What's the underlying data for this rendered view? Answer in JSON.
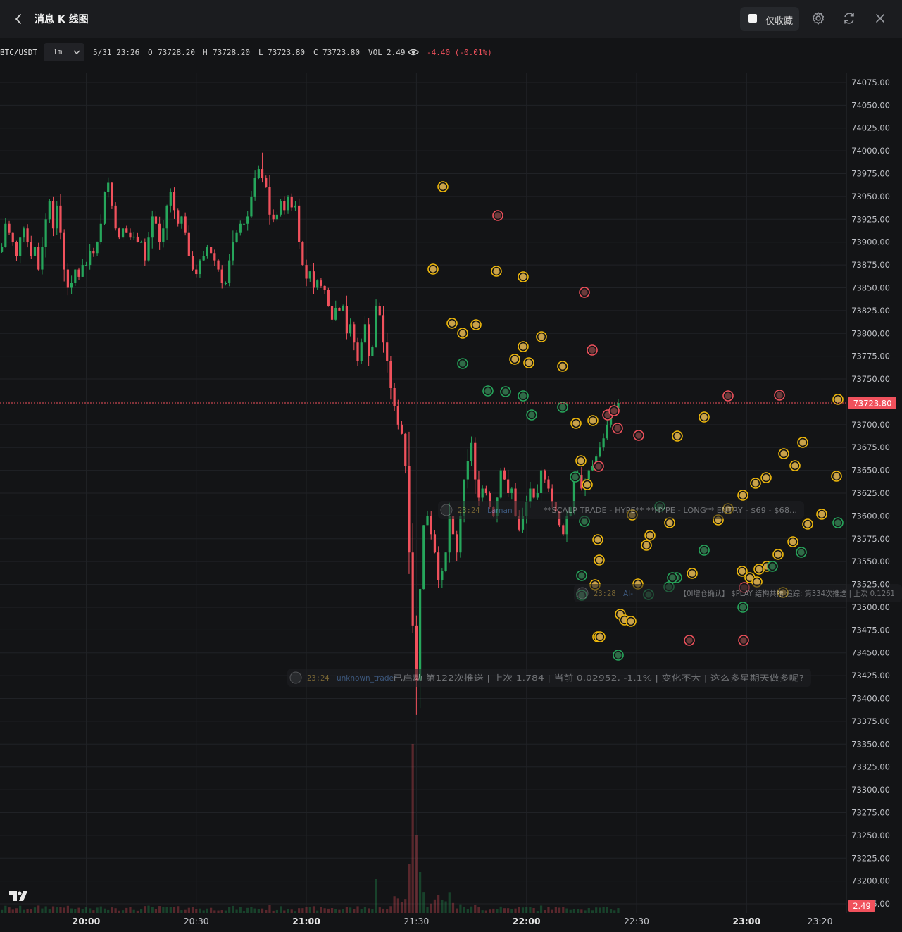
{
  "header": {
    "title": "消息 K 线图",
    "favorites_label": "仅收藏"
  },
  "toolbar": {
    "symbol": "BTC/USDT",
    "interval": "1m",
    "datetime": "5/31 23:26",
    "open_label": "O",
    "open": "73728.20",
    "high_label": "H",
    "high": "73728.20",
    "low_label": "L",
    "low": "73723.80",
    "close_label": "C",
    "close": "73723.80",
    "volume_label": "VOL",
    "volume": "2.49",
    "change": "-4.40 (-0.01%)"
  },
  "colors": {
    "up": "#26a65b",
    "down": "#f0515c",
    "grid": "#202226",
    "bg": "#131416",
    "marker_gold": "#f0b90b",
    "marker_green": "#26a65b",
    "marker_red": "#f0515c"
  },
  "overlay_messages": [
    {
      "time": "23:24",
      "author": "Laman",
      "text": "**SCALP TRADE - HYPE** **HYPE - LONG** ENTRY - $69 - $68..."
    },
    {
      "time": "23:28",
      "author": "AI-",
      "text": "【0I增仓确认】 $PLAY 结构共振 追踪: 第334次推送 | 上次 0.1261"
    },
    {
      "time": "23:24",
      "author": "unknown_trader",
      "text": "已启动 第122次推送 | 上次 1.784 | 当前 0.02952, -1.1% | 变化不大 | 这么多星期天做多呢?"
    }
  ],
  "chart_data": {
    "type": "candlestick",
    "symbol": "BTC/USDT",
    "interval": "1m",
    "ylim": [
      73165,
      74085
    ],
    "y_ticks": [
      74075,
      74050,
      74025,
      74000,
      73975,
      73950,
      73925,
      73900,
      73875,
      73850,
      73825,
      73800,
      73775,
      73750,
      73725,
      73700,
      73675,
      73650,
      73625,
      73600,
      73575,
      73550,
      73525,
      73500,
      73475,
      73450,
      73425,
      73400,
      73375,
      73350,
      73325,
      73300,
      73275,
      73250,
      73225,
      73200,
      73175
    ],
    "y_tick_labels": [
      "74075.00",
      "74050.00",
      "74025.00",
      "74000.00",
      "73975.00",
      "73950.00",
      "73925.00",
      "73900.00",
      "73875.00",
      "73850.00",
      "73825.00",
      "73800.00",
      "73775.00",
      "73750.00",
      "73725.00",
      "73700.00",
      "73675.00",
      "73650.00",
      "73625.00",
      "73600.00",
      "73575.00",
      "73550.00",
      "73525.00",
      "73500.00",
      "73475.00",
      "73450.00",
      "73425.00",
      "73400.00",
      "73375.00",
      "73350.00",
      "73325.00",
      "73300.00",
      "73275.00",
      "73250.00",
      "73225.00",
      "73200.00",
      "73175.00"
    ],
    "x_ticks": [
      "20:00",
      "20:30",
      "21:00",
      "21:30",
      "22:00",
      "22:30",
      "23:00",
      "23:20"
    ],
    "x_tick_minutes": [
      0,
      30,
      60,
      90,
      120,
      150,
      180,
      200
    ],
    "x_range_minutes": [
      -23.5,
      207
    ],
    "last_price": "73723.80",
    "last_volume": "2.49",
    "closes_by_minute": {
      "-23": 73895,
      "-22": 73920,
      "-21": 73910,
      "-20": 73900,
      "-19": 73885,
      "-18": 73905,
      "-17": 73915,
      "-16": 73900,
      "-15": 73885,
      "-14": 73895,
      "-13": 73870,
      "-12": 73895,
      "-11": 73925,
      "-10": 73945,
      "-9": 73915,
      "-8": 73940,
      "-7": 73910,
      "-6": 73870,
      "-5": 73850,
      "-4": 73855,
      "-3": 73870,
      "-2": 73862,
      "-1": 73875,
      "0": 73875,
      "1": 73890,
      "2": 73888,
      "3": 73900,
      "4": 73920,
      "5": 73955,
      "6": 73965,
      "7": 73940,
      "8": 73915,
      "9": 73905,
      "10": 73915,
      "11": 73910,
      "12": 73905,
      "13": 73906,
      "14": 73900,
      "15": 73900,
      "16": 73880,
      "17": 73905,
      "18": 73928,
      "19": 73920,
      "20": 73900,
      "21": 73915,
      "22": 73940,
      "23": 73955,
      "24": 73935,
      "25": 73920,
      "26": 73928,
      "27": 73910,
      "28": 73885,
      "29": 73870,
      "30": 73865,
      "31": 73880,
      "32": 73885,
      "33": 73895,
      "34": 73888,
      "35": 73880,
      "36": 73870,
      "37": 73855,
      "38": 73855,
      "39": 73880,
      "40": 73900,
      "41": 73910,
      "42": 73920,
      "43": 73920,
      "44": 73928,
      "45": 73950,
      "46": 73970,
      "47": 73980,
      "48": 73970,
      "49": 73960,
      "50": 73930,
      "51": 73925,
      "52": 73930,
      "53": 73945,
      "54": 73935,
      "55": 73950,
      "56": 73938,
      "57": 73940,
      "58": 73900,
      "59": 73875,
      "60": 73860,
      "61": 73868,
      "62": 73850,
      "63": 73858,
      "64": 73852,
      "65": 73848,
      "66": 73830,
      "67": 73815,
      "68": 73828,
      "69": 73825,
      "70": 73830,
      "71": 73800,
      "72": 73810,
      "73": 73790,
      "74": 73770,
      "75": 73790,
      "76": 73810,
      "77": 73775,
      "78": 73785,
      "79": 73830,
      "80": 73820,
      "81": 73790,
      "82": 73770,
      "83": 73740,
      "84": 73720,
      "85": 73700,
      "86": 73690,
      "87": 73655,
      "88": 73560,
      "89": 73480,
      "90": 73420,
      "91": 73520,
      "92": 73590,
      "93": 73600,
      "94": 73580,
      "95": 73560,
      "96": 73530,
      "97": 73540,
      "98": 73560,
      "99": 73600,
      "100": 73580,
      "101": 73560,
      "102": 73600,
      "103": 73640,
      "104": 73660,
      "105": 73680,
      "106": 73640,
      "107": 73620,
      "108": 73630,
      "109": 73625,
      "110": 73610,
      "111": 73600,
      "112": 73620,
      "113": 73650,
      "114": 73640,
      "115": 73625,
      "116": 73630,
      "117": 73600,
      "118": 73585,
      "119": 73600,
      "120": 73615,
      "121": 73630,
      "122": 73620,
      "123": 73625,
      "124": 73650,
      "125": 73640,
      "126": 73630,
      "127": 73615,
      "128": 73605,
      "129": 73590,
      "130": 73580,
      "131": 73600,
      "132": 73610,
      "133": 73640,
      "134": 73645,
      "135": 73630,
      "136": 73640,
      "137": 73650,
      "138": 73655,
      "139": 73665,
      "140": 73675,
      "141": 73685,
      "142": 73700,
      "143": 73712,
      "144": 73718,
      "145": 73723.8
    }
  }
}
